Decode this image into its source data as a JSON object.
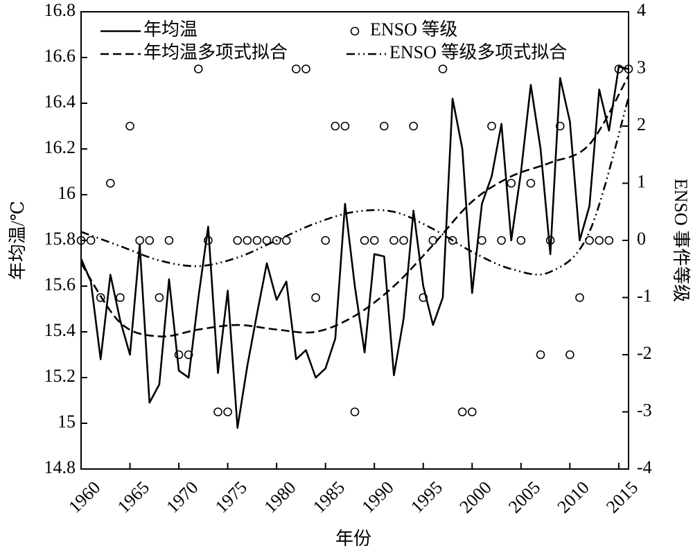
{
  "chart_data": {
    "type": "line",
    "xlabel": "年份",
    "ylabel": "年均温/℃",
    "y2label": "ENSO 事件等级",
    "x": [
      1960,
      1961,
      1962,
      1963,
      1964,
      1965,
      1966,
      1967,
      1968,
      1969,
      1970,
      1971,
      1972,
      1973,
      1974,
      1975,
      1976,
      1977,
      1978,
      1979,
      1980,
      1981,
      1982,
      1983,
      1984,
      1985,
      1986,
      1987,
      1988,
      1989,
      1990,
      1991,
      1992,
      1993,
      1994,
      1995,
      1996,
      1997,
      1998,
      1999,
      2000,
      2001,
      2002,
      2003,
      2004,
      2005,
      2006,
      2007,
      2008,
      2009,
      2010,
      2011,
      2012,
      2013,
      2014,
      2015,
      2016
    ],
    "xlim": [
      1960,
      2016
    ],
    "xticks": [
      1960,
      1965,
      1970,
      1975,
      1980,
      1985,
      1990,
      1995,
      2000,
      2005,
      2010,
      2015
    ],
    "ylim": [
      14.8,
      16.8
    ],
    "yticks": [
      14.8,
      15,
      15.2,
      15.4,
      15.6,
      15.8,
      16,
      16.2,
      16.4,
      16.6,
      16.8
    ],
    "y2lim": [
      -4,
      4
    ],
    "y2ticks": [
      -4,
      -3,
      -2,
      -1,
      0,
      1,
      2,
      3,
      4
    ],
    "legend": "upper left",
    "series": [
      {
        "name": "年均温",
        "type": "line",
        "color": "#000000",
        "style": "solid",
        "values": [
          15.72,
          15.62,
          15.28,
          15.65,
          15.45,
          15.3,
          15.78,
          15.09,
          15.17,
          15.63,
          15.23,
          15.2,
          15.55,
          15.86,
          15.22,
          15.58,
          14.98,
          15.25,
          15.48,
          15.7,
          15.54,
          15.62,
          15.28,
          15.32,
          15.2,
          15.24,
          15.37,
          15.96,
          15.6,
          15.31,
          15.74,
          15.73,
          15.21,
          15.46,
          15.93,
          15.6,
          15.43,
          15.55,
          16.42,
          16.2,
          15.57,
          15.96,
          16.08,
          16.31,
          15.8,
          16.1,
          16.48,
          16.2,
          15.74,
          16.51,
          16.32,
          15.8,
          15.95,
          16.46,
          16.28,
          16.56,
          16.55
        ]
      },
      {
        "name": "ENSO 等级",
        "type": "scatter",
        "axis": "y2",
        "color": "#000000",
        "marker": "circle",
        "values": [
          0,
          0,
          -1,
          1,
          -1,
          2,
          0,
          0,
          -1,
          0,
          -2,
          -2,
          3,
          0,
          -3,
          -3,
          0,
          0,
          0,
          0,
          0,
          0,
          3,
          3,
          -1,
          0,
          2,
          2,
          -3,
          0,
          0,
          2,
          0,
          0,
          2,
          -1,
          0,
          3,
          0,
          -3,
          -3,
          0,
          2,
          0,
          1,
          0,
          1,
          -2,
          0,
          2,
          -2,
          -1,
          0,
          0,
          0,
          3,
          3
        ]
      },
      {
        "name": "年均温多项式拟合",
        "type": "line",
        "color": "#000000",
        "style": "dashed",
        "x": [
          1960,
          1964,
          1968,
          1972,
          1976,
          1980,
          1984,
          1988,
          1992,
          1996,
          2000,
          2004,
          2008,
          2012,
          2016
        ],
        "values": [
          15.7,
          15.44,
          15.38,
          15.41,
          15.43,
          15.41,
          15.4,
          15.47,
          15.6,
          15.78,
          15.97,
          16.08,
          16.14,
          16.22,
          16.52
        ]
      },
      {
        "name": "ENSO 等级多项式拟合",
        "type": "line",
        "axis": "y2",
        "color": "#000000",
        "style": "dashdot",
        "x": [
          1960,
          1964,
          1968,
          1972,
          1976,
          1980,
          1984,
          1988,
          1992,
          1996,
          2000,
          2004,
          2008,
          2012,
          2016
        ],
        "values": [
          0.15,
          -0.1,
          -0.35,
          -0.45,
          -0.3,
          0.0,
          0.3,
          0.5,
          0.5,
          0.2,
          -0.2,
          -0.5,
          -0.55,
          0.15,
          2.5
        ]
      }
    ]
  }
}
